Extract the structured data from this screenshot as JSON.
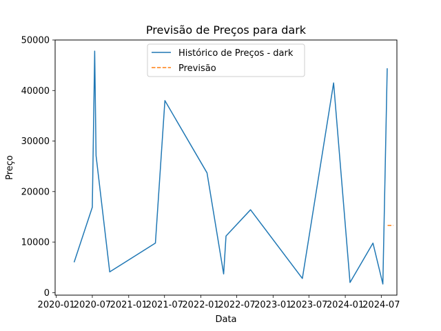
{
  "chart_data": {
    "type": "line",
    "title": "Previsão de Preços para dark",
    "xlabel": "Data",
    "ylabel": "Preço",
    "x_ticks": [
      "2020-01",
      "2020-07",
      "2021-01",
      "2021-07",
      "2022-01",
      "2022-07",
      "2023-01",
      "2023-07",
      "2024-01",
      "2024-07"
    ],
    "y_ticks": [
      "0",
      "10000",
      "20000",
      "30000",
      "40000",
      "50000"
    ],
    "xlim": [
      "2019-12-26",
      "2024-09-18"
    ],
    "ylim": [
      -500,
      50000
    ],
    "grid": false,
    "legend_position": "top-center",
    "series": [
      {
        "name": "Histórico de Preços - dark",
        "color": "#1f77b4",
        "style": "solid",
        "points": [
          [
            "2020-03-31",
            6000
          ],
          [
            "2020-07-01",
            16900
          ],
          [
            "2020-07-13",
            47800
          ],
          [
            "2020-07-20",
            27100
          ],
          [
            "2020-09-27",
            4100
          ],
          [
            "2021-05-16",
            9800
          ],
          [
            "2021-07-03",
            38000
          ],
          [
            "2022-02-01",
            23700
          ],
          [
            "2022-04-26",
            3700
          ],
          [
            "2022-05-08",
            11200
          ],
          [
            "2022-09-09",
            16400
          ],
          [
            "2023-05-29",
            2800
          ],
          [
            "2023-11-03",
            41500
          ],
          [
            "2024-01-25",
            2000
          ],
          [
            "2024-05-20",
            9800
          ],
          [
            "2024-07-09",
            1700
          ],
          [
            "2024-07-31",
            44400
          ]
        ]
      },
      {
        "name": "Previsão",
        "color": "#ff7f0e",
        "style": "dashed",
        "points": [
          [
            "2024-08-02",
            13300
          ],
          [
            "2024-08-31",
            13300
          ]
        ]
      }
    ]
  }
}
